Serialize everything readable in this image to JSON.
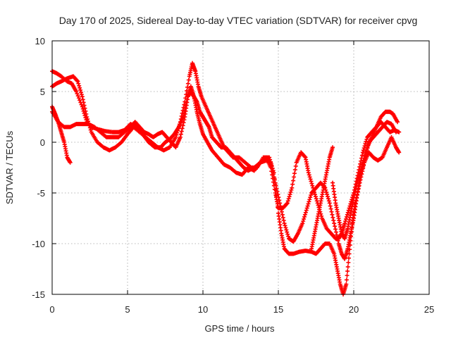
{
  "chart_data": {
    "type": "scatter",
    "title": "Day 170 of 2025, Sidereal Day-to-day VTEC variation (SDTVAR) for receiver cpvg",
    "xlabel": "GPS time / hours",
    "ylabel": "SDTVAR / TECUs",
    "xlim": [
      0,
      25
    ],
    "ylim": [
      -15,
      10
    ],
    "xticks": [
      0,
      5,
      10,
      15,
      20,
      25
    ],
    "yticks": [
      -15,
      -10,
      -5,
      0,
      5,
      10
    ],
    "grid": true,
    "marker": "+",
    "color": "#ff0000",
    "series": [
      {
        "name": "track-a",
        "points": [
          [
            0.0,
            7.0
          ],
          [
            0.3,
            6.8
          ],
          [
            0.6,
            6.5
          ],
          [
            1.0,
            6.0
          ],
          [
            1.3,
            5.8
          ],
          [
            1.6,
            5.0
          ],
          [
            2.0,
            3.5
          ],
          [
            2.3,
            2.0
          ],
          [
            2.6,
            1.5
          ],
          [
            3.0,
            1.3
          ],
          [
            3.5,
            1.1
          ],
          [
            4.0,
            1.0
          ],
          [
            4.4,
            1.0
          ],
          [
            4.8,
            1.2
          ],
          [
            5.2,
            1.8
          ],
          [
            5.6,
            1.5
          ],
          [
            6.0,
            0.8
          ],
          [
            6.4,
            0.0
          ],
          [
            6.8,
            -0.5
          ],
          [
            7.2,
            -0.5
          ],
          [
            7.5,
            0.0
          ],
          [
            7.8,
            0.3
          ],
          [
            8.1,
            0.8
          ],
          [
            8.4,
            1.5
          ],
          [
            8.7,
            2.5
          ],
          [
            9.0,
            4.5
          ],
          [
            9.2,
            5.5
          ],
          [
            9.4,
            4.5
          ],
          [
            9.6,
            3.0
          ],
          [
            9.8,
            1.8
          ],
          [
            10.0,
            0.8
          ],
          [
            10.3,
            0.0
          ],
          [
            10.6,
            -0.8
          ],
          [
            11.0,
            -1.5
          ],
          [
            11.4,
            -2.2
          ],
          [
            11.8,
            -2.5
          ],
          [
            12.2,
            -3.0
          ],
          [
            12.6,
            -3.2
          ],
          [
            13.0,
            -2.5
          ],
          [
            13.4,
            -2.8
          ],
          [
            13.8,
            -2.0
          ],
          [
            14.2,
            -1.5
          ],
          [
            14.5,
            -2.5
          ],
          [
            14.8,
            -5.0
          ],
          [
            15.0,
            -6.5
          ],
          [
            15.3,
            -6.5
          ],
          [
            15.6,
            -6.0
          ],
          [
            15.9,
            -4.5
          ],
          [
            16.2,
            -2.0
          ],
          [
            16.5,
            -1.0
          ],
          [
            16.8,
            -1.5
          ],
          [
            17.0,
            -3.0
          ],
          [
            17.3,
            -4.5
          ],
          [
            17.6,
            -6.0
          ],
          [
            17.9,
            -7.5
          ],
          [
            18.2,
            -8.5
          ],
          [
            18.5,
            -9.0
          ],
          [
            18.8,
            -9.5
          ],
          [
            19.0,
            -9.5
          ],
          [
            19.2,
            -9.0
          ],
          [
            19.4,
            -8.0
          ],
          [
            19.7,
            -6.5
          ],
          [
            20.0,
            -5.0
          ],
          [
            20.3,
            -3.0
          ],
          [
            20.6,
            -1.0
          ],
          [
            20.9,
            0.5
          ],
          [
            21.2,
            1.0
          ],
          [
            21.5,
            1.5
          ],
          [
            21.8,
            2.5
          ],
          [
            22.1,
            3.0
          ],
          [
            22.4,
            3.0
          ],
          [
            22.6,
            2.8
          ],
          [
            22.9,
            2.0
          ]
        ]
      },
      {
        "name": "track-b",
        "points": [
          [
            0.0,
            5.5
          ],
          [
            0.3,
            5.8
          ],
          [
            0.6,
            6.0
          ],
          [
            1.0,
            6.3
          ],
          [
            1.4,
            6.5
          ],
          [
            1.7,
            6.0
          ],
          [
            2.0,
            4.5
          ],
          [
            2.3,
            2.5
          ],
          [
            2.6,
            1.0
          ],
          [
            3.0,
            0.0
          ],
          [
            3.4,
            -0.5
          ],
          [
            3.8,
            -0.8
          ],
          [
            4.2,
            -0.5
          ],
          [
            4.6,
            0.0
          ],
          [
            5.0,
            0.8
          ],
          [
            5.4,
            1.5
          ],
          [
            5.8,
            1.0
          ],
          [
            6.2,
            0.5
          ],
          [
            6.6,
            0.0
          ],
          [
            7.0,
            -0.5
          ],
          [
            7.4,
            -0.8
          ],
          [
            7.8,
            -0.5
          ],
          [
            8.2,
            0.5
          ],
          [
            8.5,
            2.0
          ],
          [
            8.8,
            4.0
          ],
          [
            9.1,
            6.5
          ],
          [
            9.3,
            7.8
          ],
          [
            9.5,
            7.0
          ],
          [
            9.7,
            5.5
          ],
          [
            9.9,
            4.5
          ],
          [
            10.2,
            3.5
          ],
          [
            10.5,
            2.5
          ],
          [
            10.8,
            1.5
          ],
          [
            11.1,
            0.5
          ],
          [
            11.4,
            -0.5
          ],
          [
            11.7,
            -1.0
          ],
          [
            12.0,
            -1.5
          ],
          [
            12.4,
            -1.5
          ],
          [
            12.8,
            -2.0
          ],
          [
            13.2,
            -2.5
          ],
          [
            13.6,
            -2.5
          ],
          [
            14.0,
            -1.5
          ],
          [
            14.4,
            -1.5
          ],
          [
            14.7,
            -3.0
          ],
          [
            15.0,
            -7.0
          ],
          [
            15.2,
            -9.0
          ],
          [
            15.4,
            -10.5
          ],
          [
            15.7,
            -11.0
          ],
          [
            16.0,
            -11.0
          ],
          [
            16.4,
            -10.8
          ],
          [
            16.8,
            -10.7
          ],
          [
            17.2,
            -10.8
          ],
          [
            17.5,
            -11.0
          ],
          [
            17.8,
            -10.5
          ],
          [
            18.1,
            -10.0
          ],
          [
            18.4,
            -10.0
          ],
          [
            18.7,
            -11.0
          ],
          [
            18.9,
            -12.5
          ],
          [
            19.1,
            -14.0
          ],
          [
            19.3,
            -15.0
          ],
          [
            19.5,
            -14.0
          ],
          [
            19.7,
            -11.0
          ],
          [
            19.9,
            -8.0
          ],
          [
            20.1,
            -6.0
          ],
          [
            20.4,
            -4.0
          ],
          [
            20.7,
            -2.0
          ],
          [
            21.0,
            0.0
          ],
          [
            21.3,
            0.5
          ],
          [
            21.6,
            1.0
          ],
          [
            21.9,
            1.5
          ],
          [
            22.2,
            2.0
          ],
          [
            22.5,
            1.8
          ],
          [
            22.8,
            1.0
          ]
        ]
      },
      {
        "name": "track-c",
        "points": [
          [
            0.0,
            3.5
          ],
          [
            0.2,
            2.8
          ],
          [
            0.4,
            2.0
          ],
          [
            0.6,
            1.0
          ],
          [
            0.8,
            0.0
          ],
          [
            1.0,
            -1.5
          ],
          [
            1.2,
            -2.0
          ]
        ]
      },
      {
        "name": "track-d",
        "points": [
          [
            0.0,
            3.0
          ],
          [
            0.4,
            2.0
          ],
          [
            0.8,
            1.5
          ],
          [
            1.2,
            1.5
          ],
          [
            1.6,
            1.8
          ],
          [
            2.0,
            1.8
          ],
          [
            2.4,
            1.8
          ],
          [
            2.8,
            1.5
          ],
          [
            3.2,
            1.0
          ],
          [
            3.6,
            0.5
          ],
          [
            4.0,
            0.5
          ],
          [
            4.4,
            0.5
          ],
          [
            4.8,
            1.0
          ],
          [
            5.2,
            1.5
          ],
          [
            5.5,
            2.0
          ],
          [
            5.8,
            1.5
          ],
          [
            6.1,
            1.0
          ],
          [
            6.4,
            0.8
          ],
          [
            6.7,
            0.5
          ],
          [
            7.0,
            0.8
          ],
          [
            7.3,
            1.0
          ],
          [
            7.6,
            0.5
          ],
          [
            7.9,
            0.0
          ],
          [
            8.2,
            -0.5
          ],
          [
            8.5,
            0.5
          ],
          [
            8.8,
            2.5
          ],
          [
            9.0,
            4.5
          ],
          [
            9.2,
            5.0
          ],
          [
            9.4,
            4.5
          ],
          [
            9.6,
            4.0
          ],
          [
            9.8,
            3.0
          ],
          [
            10.0,
            2.5
          ],
          [
            10.2,
            2.0
          ],
          [
            10.4,
            1.5
          ],
          [
            10.6,
            0.5
          ],
          [
            10.9,
            0.0
          ],
          [
            11.2,
            -0.5
          ],
          [
            11.5,
            -0.5
          ],
          [
            11.8,
            -1.0
          ],
          [
            12.1,
            -1.5
          ],
          [
            12.4,
            -2.0
          ],
          [
            12.7,
            -2.5
          ],
          [
            13.0,
            -2.8
          ],
          [
            13.4,
            -2.5
          ],
          [
            13.8,
            -2.0
          ],
          [
            14.2,
            -1.8
          ],
          [
            14.5,
            -2.0
          ],
          [
            14.8,
            -4.0
          ],
          [
            15.1,
            -6.0
          ],
          [
            15.4,
            -8.0
          ],
          [
            15.7,
            -9.5
          ],
          [
            16.0,
            -9.8
          ],
          [
            16.3,
            -9.0
          ],
          [
            16.6,
            -8.0
          ],
          [
            16.9,
            -6.5
          ],
          [
            17.2,
            -5.0
          ],
          [
            17.5,
            -4.5
          ],
          [
            17.8,
            -4.0
          ],
          [
            18.1,
            -4.5
          ],
          [
            18.4,
            -6.0
          ],
          [
            18.7,
            -8.0
          ],
          [
            19.0,
            -10.0
          ],
          [
            19.2,
            -11.0
          ],
          [
            19.4,
            -11.5
          ],
          [
            19.6,
            -10.5
          ],
          [
            19.8,
            -9.0
          ],
          [
            20.0,
            -7.5
          ],
          [
            20.2,
            -5.5
          ],
          [
            20.4,
            -3.5
          ],
          [
            20.7,
            -2.0
          ],
          [
            21.0,
            -1.0
          ],
          [
            21.3,
            -1.5
          ],
          [
            21.6,
            -1.8
          ],
          [
            21.9,
            -1.5
          ],
          [
            22.2,
            -0.5
          ],
          [
            22.5,
            0.5
          ],
          [
            22.8,
            -0.5
          ],
          [
            23.0,
            -1.0
          ]
        ]
      },
      {
        "name": "track-e",
        "points": [
          [
            18.6,
            -4.0
          ],
          [
            18.8,
            -6.0
          ],
          [
            19.0,
            -7.5
          ],
          [
            19.2,
            -9.0
          ],
          [
            19.4,
            -9.5
          ],
          [
            19.6,
            -8.5
          ],
          [
            19.8,
            -7.0
          ],
          [
            20.0,
            -5.5
          ],
          [
            20.3,
            -3.5
          ],
          [
            20.6,
            -2.0
          ],
          [
            20.9,
            -0.5
          ],
          [
            21.2,
            0.5
          ],
          [
            21.5,
            1.5
          ],
          [
            21.8,
            2.0
          ],
          [
            22.1,
            1.5
          ],
          [
            22.4,
            1.0
          ],
          [
            22.7,
            1.2
          ],
          [
            23.0,
            1.0
          ]
        ]
      },
      {
        "name": "track-f",
        "points": [
          [
            17.2,
            -10.5
          ],
          [
            17.4,
            -9.0
          ],
          [
            17.6,
            -7.5
          ],
          [
            17.8,
            -6.0
          ],
          [
            18.0,
            -4.5
          ],
          [
            18.2,
            -3.0
          ],
          [
            18.4,
            -1.5
          ],
          [
            18.6,
            -0.5
          ]
        ]
      }
    ]
  }
}
